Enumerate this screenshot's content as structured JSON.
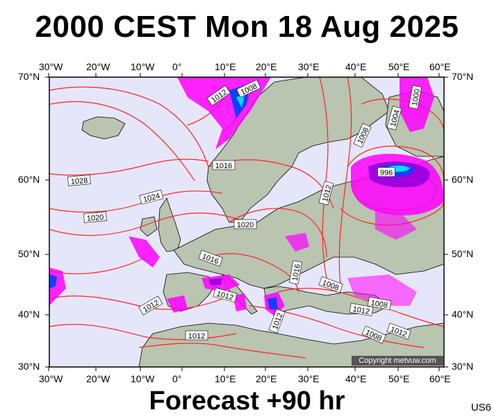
{
  "title": "2000 CEST Mon 18 Aug 2025",
  "footer": "Forecast +90 hr",
  "model_code": "US6",
  "copyright": "Copyright metvuw.com",
  "axes": {
    "lon_labels": [
      "30°W",
      "20°W",
      "10°W",
      "0°",
      "10°E",
      "20°E",
      "30°E",
      "40°E",
      "50°E",
      "60°E"
    ],
    "lat_labels": [
      "70°N",
      "60°N",
      "50°N",
      "40°N",
      "30°N"
    ]
  },
  "isobar_labels": [
    "1012",
    "1008",
    "1000",
    "1004",
    "1008",
    "1016",
    "996",
    "1028",
    "1024",
    "1012",
    "1020",
    "1020",
    "1016",
    "1016",
    "1008",
    "1012",
    "1012",
    "1012",
    "1012",
    "1008",
    "1012",
    "1008",
    "1012"
  ],
  "colors": {
    "sea": "#e6e6fb",
    "isobar": "#ff2020",
    "coast": "#000000",
    "precip_magenta": "#ff00ff",
    "precip_purple": "#a000e0",
    "precip_blue": "#1040ff",
    "precip_cyan": "#00e0ff",
    "land": "#b9c4b1"
  }
}
